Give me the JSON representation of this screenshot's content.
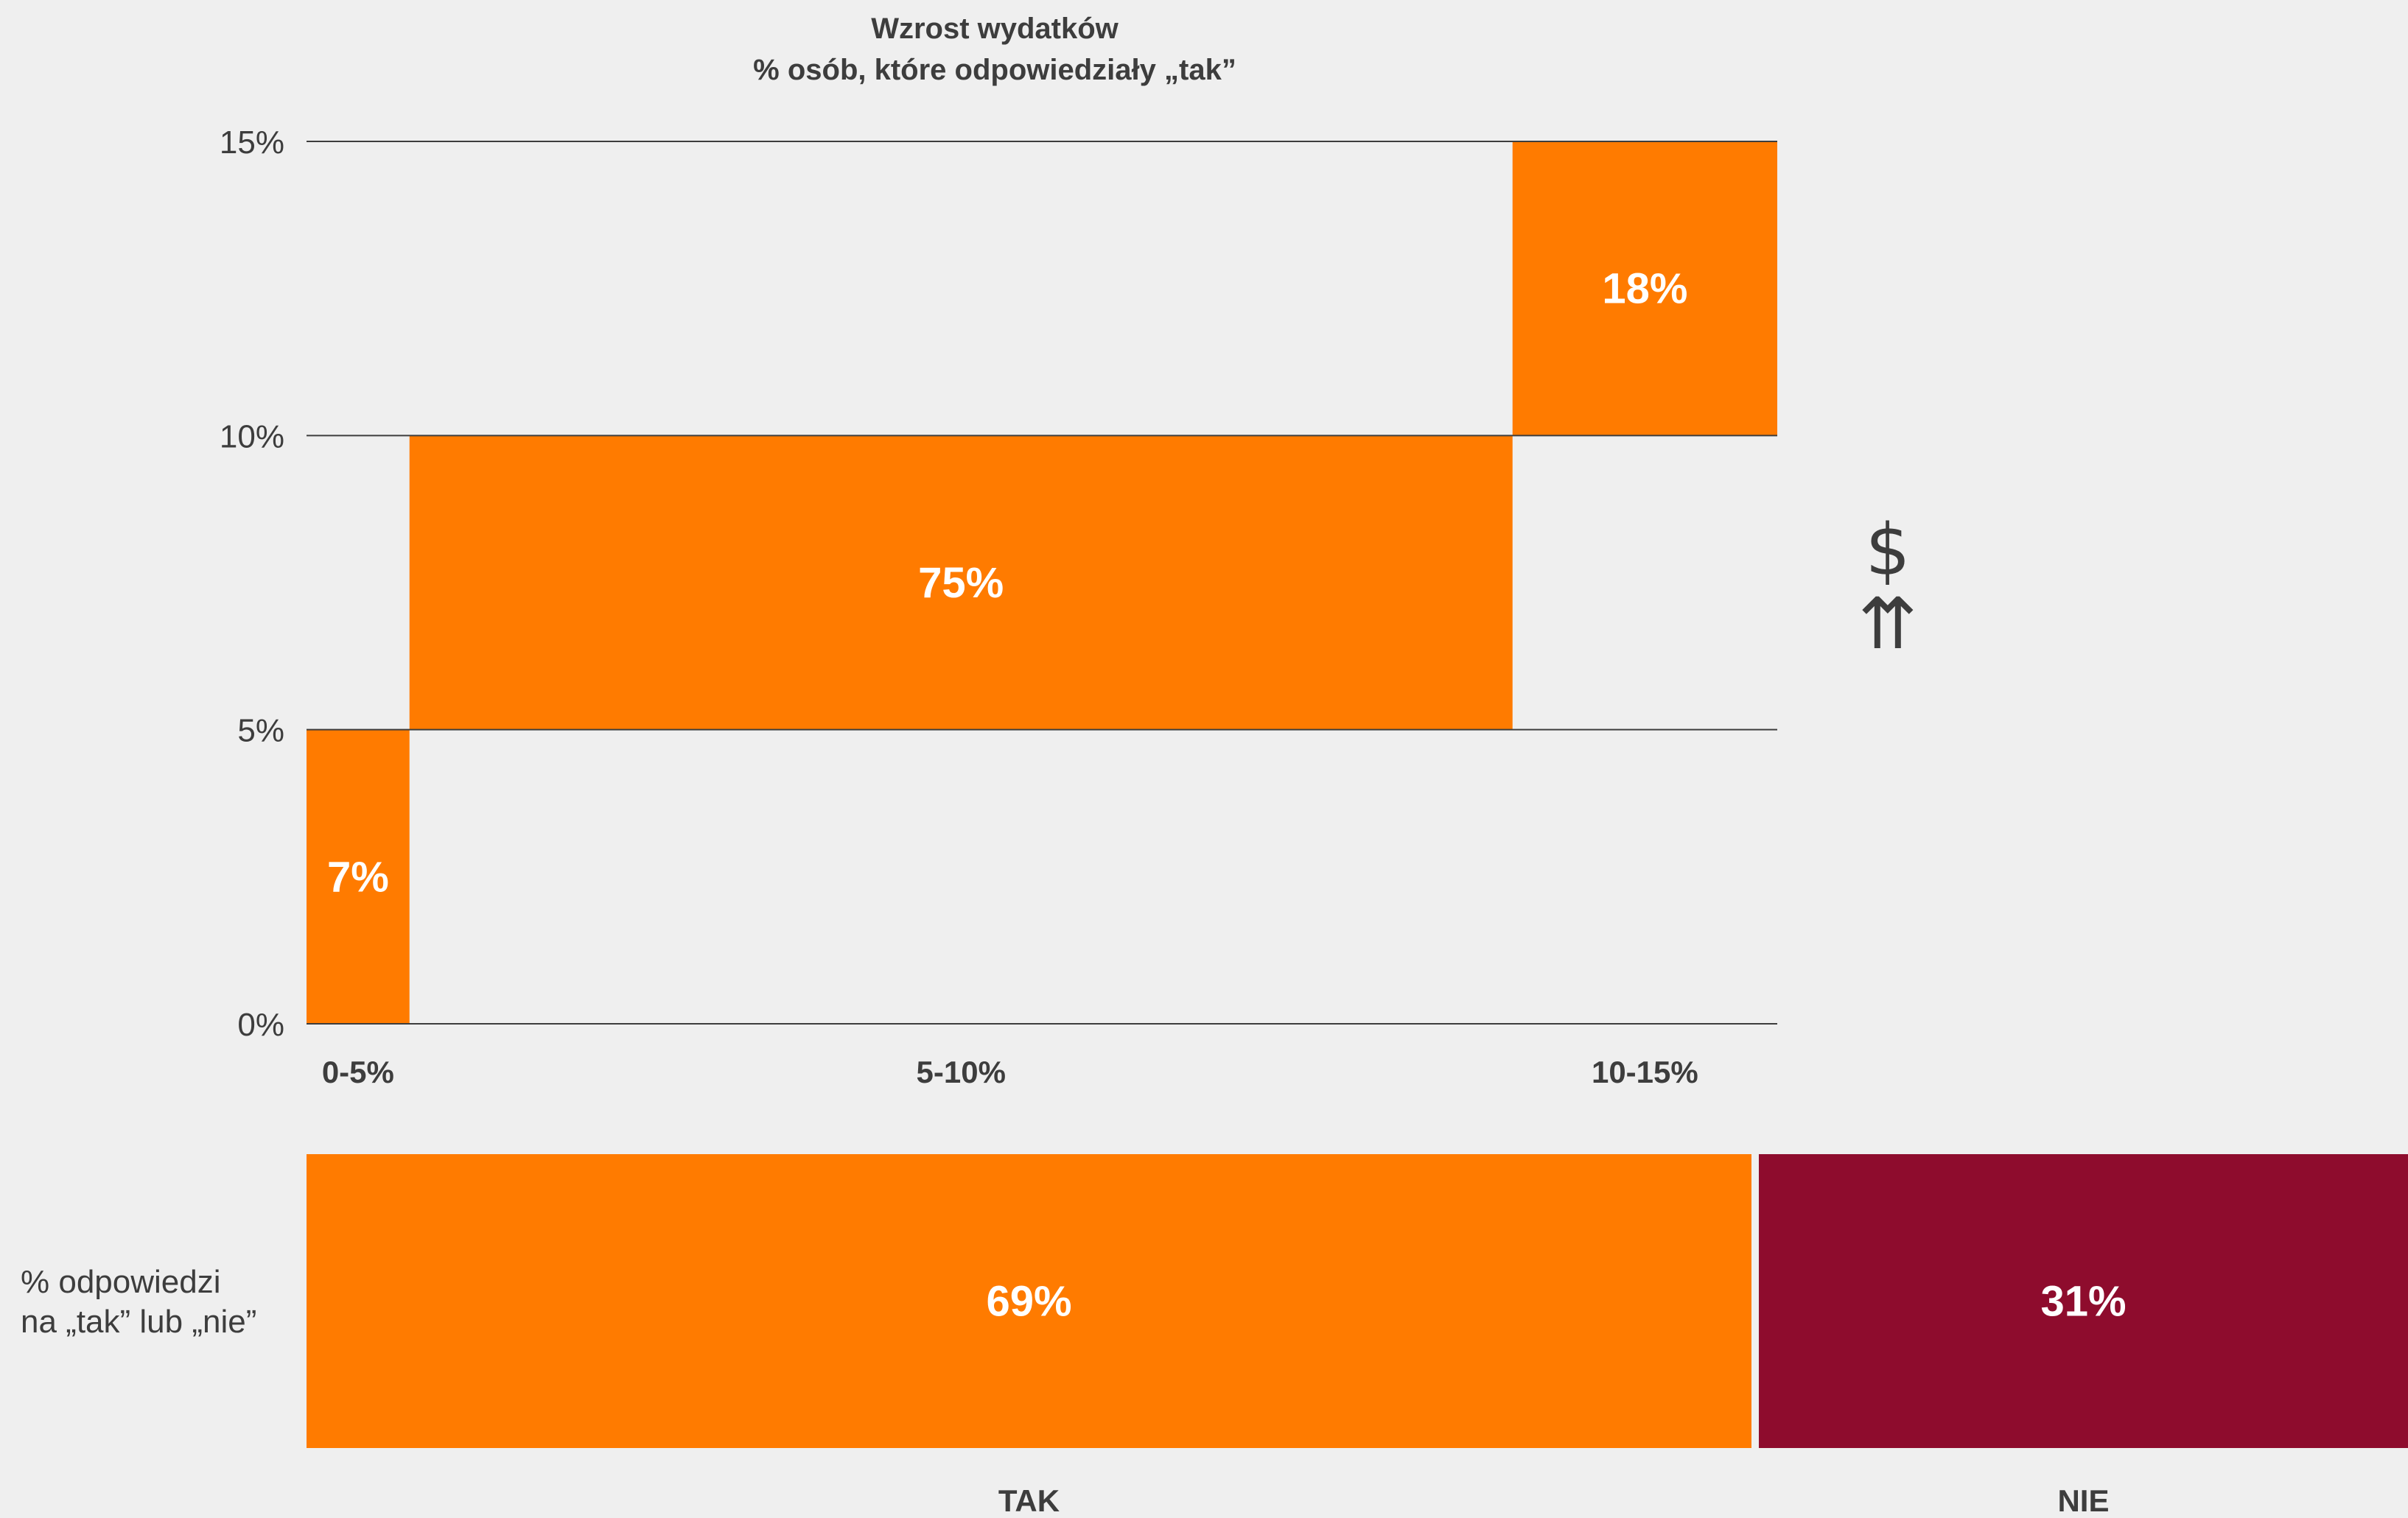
{
  "chart_data": [
    {
      "type": "bar",
      "title": "Wzrost wydatków",
      "subtitle": "% osób, które odpowiedziały „tak”",
      "categories": [
        "0-5%",
        "5-10%",
        "10-15%"
      ],
      "values": [
        7,
        75,
        18
      ],
      "value_labels": [
        "7%",
        "75%",
        "18%"
      ],
      "bands": [
        [
          0,
          5
        ],
        [
          5,
          10
        ],
        [
          10,
          15
        ]
      ],
      "y_ticks": [
        "0%",
        "5%",
        "10%",
        "15%"
      ],
      "ylim": [
        0,
        15
      ],
      "grid": true,
      "color": "#ff7b00"
    },
    {
      "type": "bar",
      "orientation": "horizontal-stacked",
      "label": "% odpowiedzi na „tak” lub „nie”",
      "label_lines": [
        "% odpowiedzi",
        "na „tak” lub „nie”"
      ],
      "categories": [
        "TAK",
        "NIE"
      ],
      "values": [
        69,
        31
      ],
      "value_labels": [
        "69%",
        "31%"
      ],
      "colors": [
        "#ff7b00",
        "#8e0c2d"
      ]
    }
  ],
  "icons": {
    "dollar": "$",
    "arrows": "⇈",
    "names": [
      "dollar-icon",
      "double-up-arrow-icon"
    ]
  }
}
